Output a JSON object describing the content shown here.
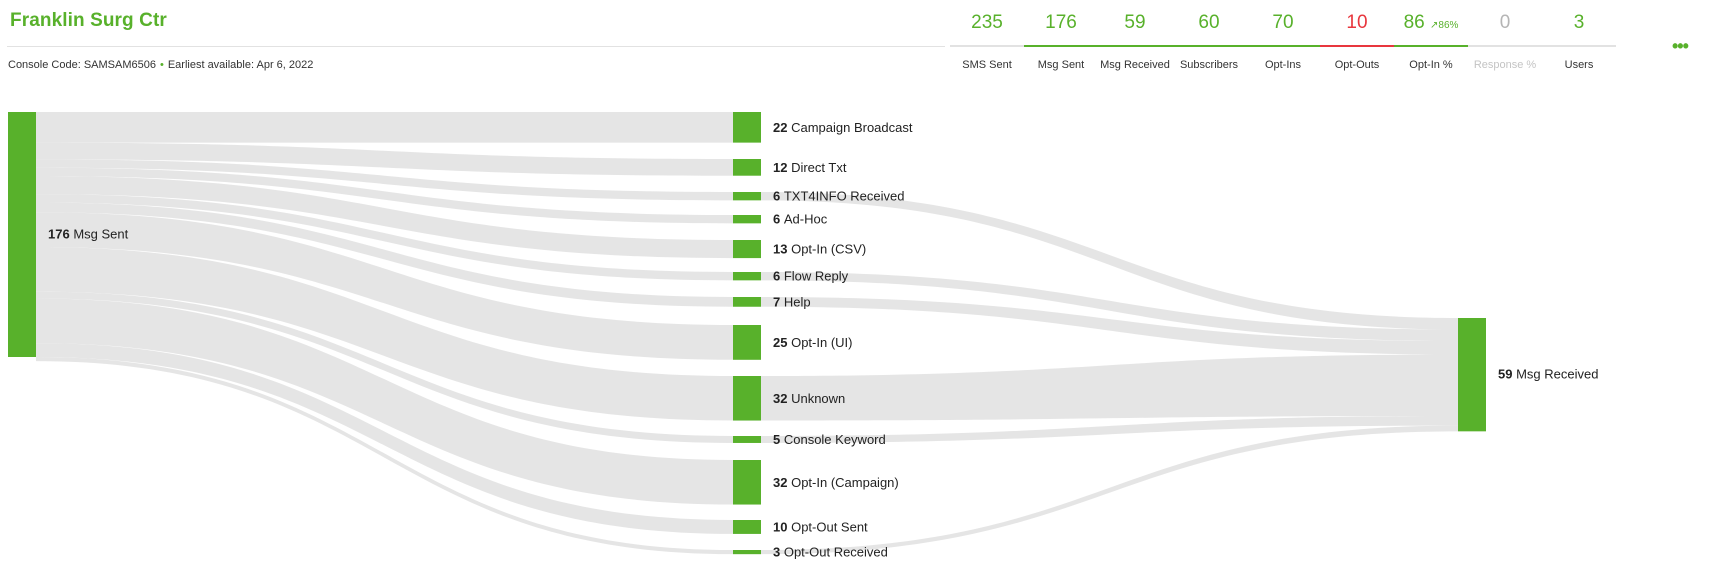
{
  "header": {
    "title": "Franklin Surg Ctr",
    "console_code": "Console Code: SAMSAM6506",
    "separator": "•",
    "earliest": "Earliest available: Apr 6, 2022",
    "menu": "•••"
  },
  "stats": [
    {
      "value": "235",
      "label": "SMS Sent",
      "status": "neutral"
    },
    {
      "value": "176",
      "label": "Msg Sent",
      "status": "green"
    },
    {
      "value": "59",
      "label": "Msg Received",
      "status": "green"
    },
    {
      "value": "60",
      "label": "Subscribers",
      "status": "green"
    },
    {
      "value": "70",
      "label": "Opt-Ins",
      "status": "green"
    },
    {
      "value": "10",
      "label": "Opt-Outs",
      "status": "red"
    },
    {
      "value": "86",
      "trend": "↗86%",
      "label": "Opt-In %",
      "status": "green"
    },
    {
      "value": "0",
      "label": "Response %",
      "status": "grey"
    },
    {
      "value": "3",
      "label": "Users",
      "status": "neutral"
    }
  ],
  "colors": {
    "accent": "#58b12b",
    "negative": "#e8363d",
    "flow": "#e4e4e4"
  },
  "sankey": {
    "source": {
      "value": 176,
      "label": "Msg Sent"
    },
    "target": {
      "value": 59,
      "label": "Msg Received"
    },
    "middle": [
      {
        "value": 22,
        "label": "Campaign Broadcast",
        "to_target": 0
      },
      {
        "value": 12,
        "label": "Direct Txt",
        "to_target": 0
      },
      {
        "value": 6,
        "label": "TXT4INFO Received",
        "to_target": 6
      },
      {
        "value": 6,
        "label": "Ad-Hoc",
        "to_target": 0
      },
      {
        "value": 13,
        "label": "Opt-In (CSV)",
        "to_target": 0
      },
      {
        "value": 6,
        "label": "Flow Reply",
        "to_target": 6
      },
      {
        "value": 7,
        "label": "Help",
        "to_target": 7
      },
      {
        "value": 25,
        "label": "Opt-In (UI)",
        "to_target": 0
      },
      {
        "value": 32,
        "label": "Unknown",
        "to_target": 32
      },
      {
        "value": 5,
        "label": "Console Keyword",
        "to_target": 5
      },
      {
        "value": 32,
        "label": "Opt-In (Campaign)",
        "to_target": 0
      },
      {
        "value": 10,
        "label": "Opt-Out Sent",
        "to_target": 0
      },
      {
        "value": 3,
        "label": "Opt-Out Received",
        "to_target": 3
      }
    ]
  }
}
